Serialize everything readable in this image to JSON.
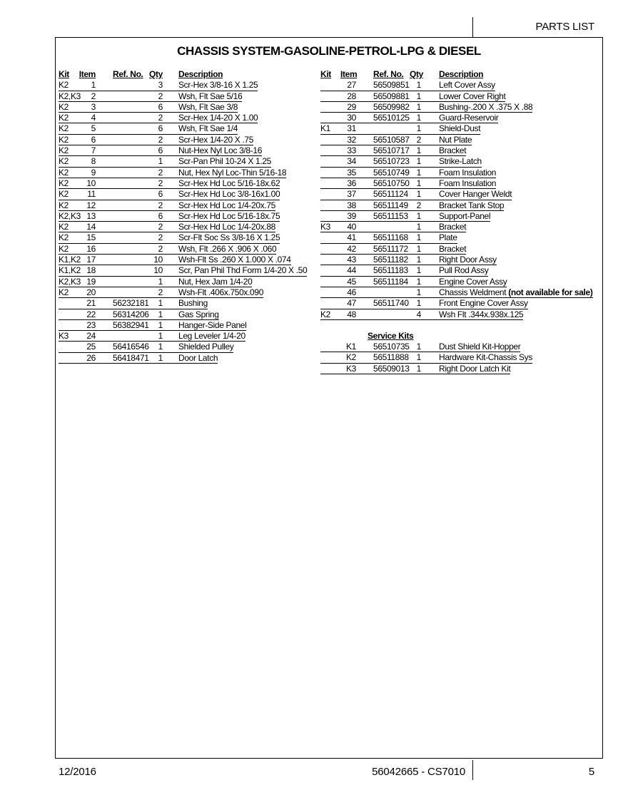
{
  "header": {
    "title": "PARTS LIST"
  },
  "document_title": "CHASSIS SYSTEM-GASOLINE-PETROL-LPG & DIESEL",
  "columns": {
    "kit": "Kit",
    "item": "Item",
    "ref": "Ref. No.",
    "qty": "Qty",
    "desc": "Description"
  },
  "left_rows": [
    {
      "kit": "K2",
      "item": "1",
      "ref": "",
      "qty": "3",
      "desc": "Scr-Hex 3/8-16 X 1.25"
    },
    {
      "kit": "K2,K3",
      "item": "2",
      "ref": "",
      "qty": "2",
      "desc": "Wsh, Flt Sae 5/16"
    },
    {
      "kit": "K2",
      "item": "3",
      "ref": "",
      "qty": "6",
      "desc": "Wsh, Flt Sae 3/8"
    },
    {
      "kit": "K2",
      "item": "4",
      "ref": "",
      "qty": "2",
      "desc": "Scr-Hex 1/4-20 X 1.00"
    },
    {
      "kit": "K2",
      "item": "5",
      "ref": "",
      "qty": "6",
      "desc": "Wsh, Flt Sae 1/4"
    },
    {
      "kit": "K2",
      "item": "6",
      "ref": "",
      "qty": "2",
      "desc": "Scr-Hex 1/4-20 X .75"
    },
    {
      "kit": "K2",
      "item": "7",
      "ref": "",
      "qty": "6",
      "desc": "Nut-Hex Nyl Loc 3/8-16"
    },
    {
      "kit": "K2",
      "item": "8",
      "ref": "",
      "qty": "1",
      "desc": "Scr-Pan Phil 10-24 X 1.25"
    },
    {
      "kit": "K2",
      "item": "9",
      "ref": "",
      "qty": "2",
      "desc": "Nut, Hex Nyl Loc-Thin 5/16-18"
    },
    {
      "kit": "K2",
      "item": "10",
      "ref": "",
      "qty": "2",
      "desc": "Scr-Hex Hd Loc 5/16-18x.62"
    },
    {
      "kit": "K2",
      "item": "11",
      "ref": "",
      "qty": "6",
      "desc": "Scr-Hex Hd Loc 3/8-16x1.00"
    },
    {
      "kit": "K2",
      "item": "12",
      "ref": "",
      "qty": "2",
      "desc": "Scr-Hex Hd Loc 1/4-20x.75"
    },
    {
      "kit": "K2,K3",
      "item": "13",
      "ref": "",
      "qty": "6",
      "desc": "Scr-Hex Hd Loc 5/16-18x.75"
    },
    {
      "kit": "K2",
      "item": "14",
      "ref": "",
      "qty": "2",
      "desc": "Scr-Hex Hd Loc 1/4-20x.88"
    },
    {
      "kit": "K2",
      "item": "15",
      "ref": "",
      "qty": "2",
      "desc": "Scr-Flt Soc Ss 3/8-16 X 1.25"
    },
    {
      "kit": "K2",
      "item": "16",
      "ref": "",
      "qty": "2",
      "desc": "Wsh, Flt .266 X .906 X .060"
    },
    {
      "kit": "K1,K2",
      "item": "17",
      "ref": "",
      "qty": "10",
      "desc": "Wsh-Flt Ss .260 X 1.000 X .074"
    },
    {
      "kit": "K1,K2",
      "item": "18",
      "ref": "",
      "qty": "10",
      "desc": "Scr, Pan Phil Thd Form 1/4-20 X .50"
    },
    {
      "kit": "K2,K3",
      "item": "19",
      "ref": "",
      "qty": "1",
      "desc": "Nut, Hex Jam 1/4-20"
    },
    {
      "kit": "K2",
      "item": "20",
      "ref": "",
      "qty": "2",
      "desc": "Wsh-Flt .406x.750x.090"
    },
    {
      "kit": "",
      "item": "21",
      "ref": "56232181",
      "qty": "1",
      "desc": "Bushing"
    },
    {
      "kit": "",
      "item": "22",
      "ref": "56314206",
      "qty": "1",
      "desc": "Gas Spring"
    },
    {
      "kit": "",
      "item": "23",
      "ref": "56382941",
      "qty": "1",
      "desc": "Hanger-Side Panel"
    },
    {
      "kit": "K3",
      "item": "24",
      "ref": "",
      "qty": "1",
      "desc": "Leg Leveler 1/4-20"
    },
    {
      "kit": "",
      "item": "25",
      "ref": "56416546",
      "qty": "1",
      "desc": "Shielded Pulley"
    },
    {
      "kit": "",
      "item": "26",
      "ref": "56418471",
      "qty": "1",
      "desc": "Door Latch"
    }
  ],
  "right_rows": [
    {
      "kit": "",
      "item": "27",
      "ref": "56509851",
      "qty": "1",
      "desc": "Left Cover Assy"
    },
    {
      "kit": "",
      "item": "28",
      "ref": "56509881",
      "qty": "1",
      "desc": "Lower Cover Right"
    },
    {
      "kit": "",
      "item": "29",
      "ref": "56509982",
      "qty": "1",
      "desc": "Bushing-.200 X .375 X .88"
    },
    {
      "kit": "",
      "item": "30",
      "ref": "56510125",
      "qty": "1",
      "desc": "Guard-Reservoir"
    },
    {
      "kit": "K1",
      "item": "31",
      "ref": "",
      "qty": "1",
      "desc": "Shield-Dust"
    },
    {
      "kit": "",
      "item": "32",
      "ref": "56510587",
      "qty": "2",
      "desc": "Nut Plate"
    },
    {
      "kit": "",
      "item": "33",
      "ref": "56510717",
      "qty": "1",
      "desc": "Bracket"
    },
    {
      "kit": "",
      "item": "34",
      "ref": "56510723",
      "qty": "1",
      "desc": "Strike-Latch"
    },
    {
      "kit": "",
      "item": "35",
      "ref": "56510749",
      "qty": "1",
      "desc": "Foam Insulation"
    },
    {
      "kit": "",
      "item": "36",
      "ref": "56510750",
      "qty": "1",
      "desc": "Foam Insulation"
    },
    {
      "kit": "",
      "item": "37",
      "ref": "56511124",
      "qty": "1",
      "desc": "Cover Hanger Weldt"
    },
    {
      "kit": "",
      "item": "38",
      "ref": "56511149",
      "qty": "2",
      "desc": "Bracket Tank Stop"
    },
    {
      "kit": "",
      "item": "39",
      "ref": "56511153",
      "qty": "1",
      "desc": "Support-Panel"
    },
    {
      "kit": "K3",
      "item": "40",
      "ref": "",
      "qty": "1",
      "desc": "Bracket"
    },
    {
      "kit": "",
      "item": "41",
      "ref": "56511168",
      "qty": "1",
      "desc": "Plate"
    },
    {
      "kit": "",
      "item": "42",
      "ref": "56511172",
      "qty": "1",
      "desc": "Bracket"
    },
    {
      "kit": "",
      "item": "43",
      "ref": "56511182",
      "qty": "1",
      "desc": "Right Door Assy"
    },
    {
      "kit": "",
      "item": "44",
      "ref": "56511183",
      "qty": "1",
      "desc": "Pull Rod Assy"
    },
    {
      "kit": "",
      "item": "45",
      "ref": "56511184",
      "qty": "1",
      "desc": "Engine Cover Assy"
    },
    {
      "kit": "",
      "item": "46",
      "ref": "",
      "qty": "1",
      "desc": "Chassis Weldment",
      "desc_bold": " (not available for sale)"
    },
    {
      "kit": "",
      "item": "47",
      "ref": "56511740",
      "qty": "1",
      "desc": "Front Engine Cover Assy"
    },
    {
      "kit": "K2",
      "item": "48",
      "ref": "",
      "qty": "4",
      "desc": "Wsh Flt .344x.938x.125"
    }
  ],
  "service_kits": {
    "title": "Service Kits",
    "rows": [
      {
        "kit": "K1",
        "ref": "56510735",
        "qty": "1",
        "desc": "Dust Shield Kit-Hopper"
      },
      {
        "kit": "K2",
        "ref": "56511888",
        "qty": "1",
        "desc": "Hardware Kit-Chassis Sys"
      },
      {
        "kit": "K3",
        "ref": "56509013",
        "qty": "1",
        "desc": "Right Door Latch Kit"
      }
    ]
  },
  "footer": {
    "date": "12/2016",
    "doc_number": "56042665 - CS7010",
    "page": "5"
  }
}
